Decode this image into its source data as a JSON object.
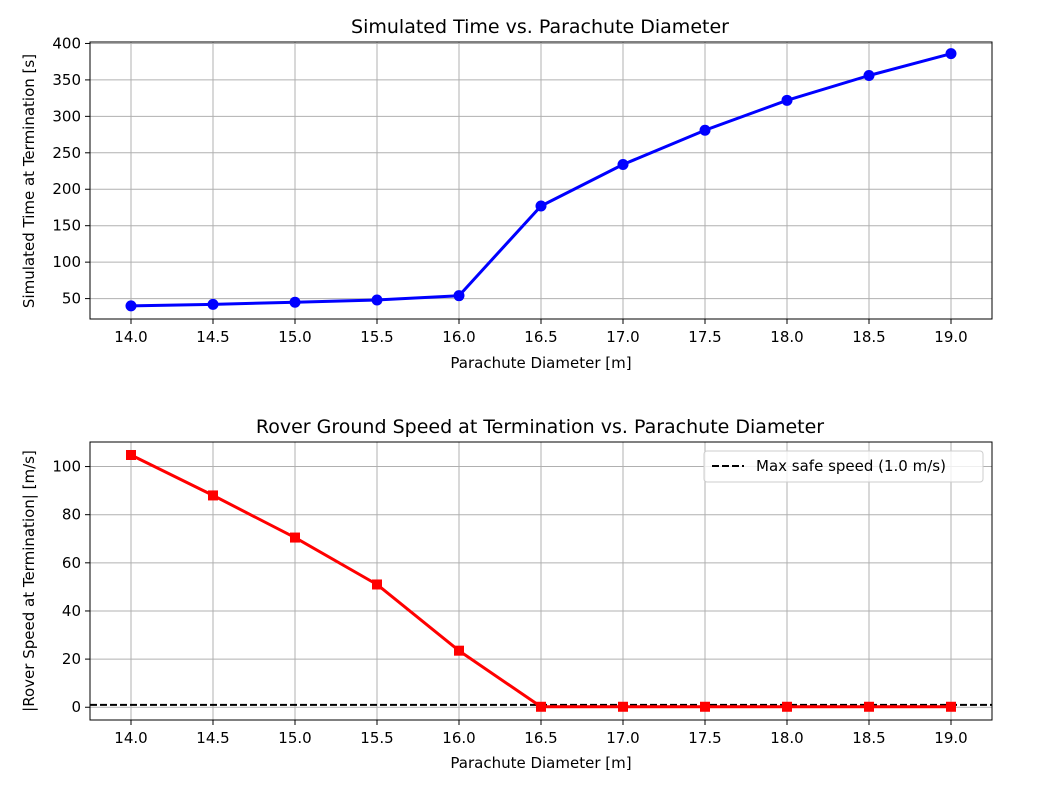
{
  "chart_data": [
    {
      "type": "line",
      "title": "Simulated Time vs. Parachute Diameter",
      "xlabel": "Parachute Diameter [m]",
      "ylabel": "Simulated Time at Termination [s]",
      "xlim": [
        13.75,
        19.25
      ],
      "ylim": [
        22,
        402
      ],
      "xticks": [
        14.0,
        14.5,
        15.0,
        15.5,
        16.0,
        16.5,
        17.0,
        17.5,
        18.0,
        18.5,
        19.0
      ],
      "xtick_labels": [
        "14.0",
        "14.5",
        "15.0",
        "15.5",
        "16.0",
        "16.5",
        "17.0",
        "17.5",
        "18.0",
        "18.5",
        "19.0"
      ],
      "yticks": [
        50,
        100,
        150,
        200,
        250,
        300,
        350,
        400
      ],
      "ytick_labels": [
        "50",
        "100",
        "150",
        "200",
        "250",
        "300",
        "350",
        "400"
      ],
      "grid": true,
      "series": [
        {
          "color": "#0000ff",
          "marker": "circle",
          "x": [
            14.0,
            14.5,
            15.0,
            15.5,
            16.0,
            16.5,
            17.0,
            17.5,
            18.0,
            18.5,
            19.0
          ],
          "y": [
            40,
            42,
            45,
            48,
            54,
            177,
            234,
            281,
            322,
            356,
            386
          ]
        }
      ]
    },
    {
      "type": "line",
      "title": "Rover Ground Speed at Termination vs. Parachute Diameter",
      "xlabel": "Parachute Diameter [m]",
      "ylabel": "|Rover Speed at Termination| [m/s]",
      "xlim": [
        13.75,
        19.25
      ],
      "ylim": [
        -5.3,
        110.2
      ],
      "xticks": [
        14.0,
        14.5,
        15.0,
        15.5,
        16.0,
        16.5,
        17.0,
        17.5,
        18.0,
        18.5,
        19.0
      ],
      "xtick_labels": [
        "14.0",
        "14.5",
        "15.0",
        "15.5",
        "16.0",
        "16.5",
        "17.0",
        "17.5",
        "18.0",
        "18.5",
        "19.0"
      ],
      "yticks": [
        0,
        20,
        40,
        60,
        80,
        100
      ],
      "ytick_labels": [
        "0",
        "20",
        "40",
        "60",
        "80",
        "100"
      ],
      "grid": true,
      "legend_placement": "top-right",
      "series": [
        {
          "color": "#ff0000",
          "marker": "square",
          "x": [
            14.0,
            14.5,
            15.0,
            15.5,
            16.0,
            16.5,
            17.0,
            17.5,
            18.0,
            18.5,
            19.0
          ],
          "y": [
            104.8,
            88,
            70.5,
            51,
            23.5,
            0.2,
            0.2,
            0.2,
            0.2,
            0.2,
            0.2
          ]
        }
      ],
      "hlines": [
        {
          "name": "Max safe speed (1.0 m/s)",
          "y": 1.0,
          "color": "#000000",
          "style": "dashed"
        }
      ]
    }
  ]
}
